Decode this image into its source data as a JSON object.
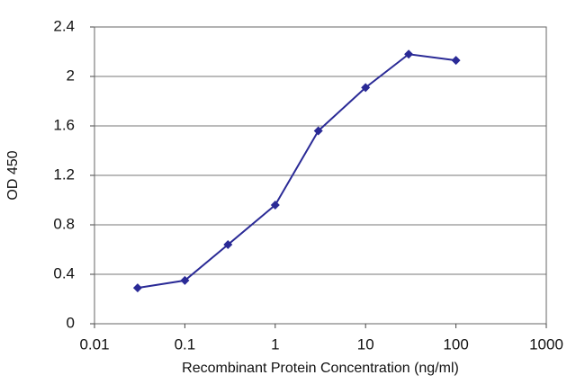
{
  "chart_data": {
    "type": "line",
    "xlabel": "Recombinant Protein Concentration (ng/ml)",
    "ylabel": "OD 450",
    "x": [
      0.03,
      0.1,
      0.3,
      1,
      3,
      10,
      30,
      100
    ],
    "series": [
      {
        "name": "OD 450",
        "color": "#2a2a96",
        "values": [
          0.29,
          0.35,
          0.64,
          0.96,
          1.56,
          1.91,
          2.18,
          2.13
        ]
      }
    ],
    "xscale": "log",
    "xlim": [
      0.01,
      1000
    ],
    "xticks": [
      0.01,
      0.1,
      1,
      10,
      100,
      1000
    ],
    "ylim": [
      0,
      2.4
    ],
    "yticks": [
      0,
      0.4,
      0.8,
      1.2,
      1.6,
      2,
      2.4
    ],
    "grid": true
  }
}
